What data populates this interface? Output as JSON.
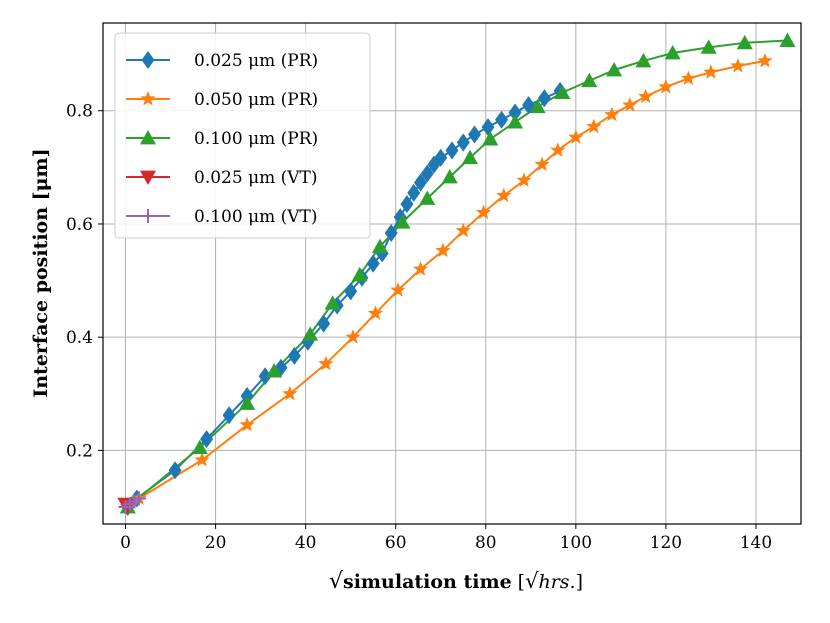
{
  "chart_data": {
    "type": "line",
    "title": "",
    "xlabel": {
      "sqrt_symbol": "√",
      "bold_part": "simulation time",
      "unit_open": "[",
      "unit_symbol": "√",
      "unit_text": "hrs.",
      "unit_close": "]"
    },
    "ylabel": "Interface position [μm]",
    "xlim": [
      -5,
      150
    ],
    "ylim": [
      0.07,
      0.955
    ],
    "xticks": [
      0,
      20,
      40,
      60,
      80,
      100,
      120,
      140
    ],
    "yticks": [
      0.2,
      0.4,
      0.6,
      0.8
    ],
    "grid": true,
    "legend": {
      "position": "top-left"
    },
    "series": [
      {
        "name": "0.025 μm (PR)",
        "color": "#1f77b4",
        "marker": "diamond",
        "x": [
          0.5,
          2.5,
          11,
          18,
          23,
          27,
          31,
          34.5,
          37.5,
          40.5,
          44,
          47,
          50,
          52.5,
          55,
          57,
          59,
          61,
          62.5,
          64,
          65.5,
          67,
          68.5,
          70,
          72.5,
          75,
          77.5,
          80.5,
          83.5,
          86.5,
          89.5,
          93,
          96.5
        ],
        "y": [
          0.1,
          0.115,
          0.165,
          0.22,
          0.262,
          0.296,
          0.331,
          0.346,
          0.367,
          0.392,
          0.424,
          0.456,
          0.481,
          0.505,
          0.53,
          0.548,
          0.584,
          0.612,
          0.635,
          0.655,
          0.673,
          0.689,
          0.705,
          0.717,
          0.73,
          0.744,
          0.758,
          0.771,
          0.784,
          0.797,
          0.81,
          0.822,
          0.835
        ]
      },
      {
        "name": "0.050 μm (PR)",
        "color": "#ff7f0e",
        "marker": "star",
        "x": [
          0.5,
          3,
          17,
          27,
          36.5,
          44.5,
          50.5,
          55.5,
          60.5,
          65.5,
          70.5,
          75,
          79.5,
          84,
          88.5,
          92.5,
          96,
          100,
          104,
          108,
          112,
          115.5,
          120,
          125,
          130,
          136,
          142
        ],
        "y": [
          0.1,
          0.115,
          0.183,
          0.245,
          0.3,
          0.353,
          0.4,
          0.442,
          0.483,
          0.52,
          0.553,
          0.588,
          0.62,
          0.65,
          0.677,
          0.705,
          0.73,
          0.753,
          0.772,
          0.793,
          0.81,
          0.825,
          0.842,
          0.857,
          0.868,
          0.879,
          0.888
        ]
      },
      {
        "name": "0.100 μm (PR)",
        "color": "#2ca02c",
        "marker": "triangle-up",
        "x": [
          0.5,
          16.5,
          27,
          33,
          41,
          46,
          52,
          56.5,
          61.5,
          67,
          72,
          76.5,
          81,
          86.5,
          91.5,
          97,
          103,
          108.5,
          115,
          121.5,
          129.5,
          137.5,
          147
        ],
        "y": [
          0.1,
          0.205,
          0.283,
          0.34,
          0.405,
          0.46,
          0.51,
          0.56,
          0.603,
          0.645,
          0.683,
          0.717,
          0.75,
          0.78,
          0.807,
          0.832,
          0.853,
          0.872,
          0.888,
          0.902,
          0.912,
          0.92,
          0.924
        ]
      },
      {
        "name": "0.025 μm (VT)",
        "color": "#d62728",
        "marker": "triangle-down",
        "x": [
          0,
          0.4
        ],
        "y": [
          0.105,
          0.1
        ]
      },
      {
        "name": "0.100 μm (VT)",
        "color": "#9467bd",
        "marker": "plus",
        "x": [
          0,
          1,
          2,
          3
        ],
        "y": [
          0.1,
          0.105,
          0.11,
          0.115
        ]
      }
    ]
  }
}
